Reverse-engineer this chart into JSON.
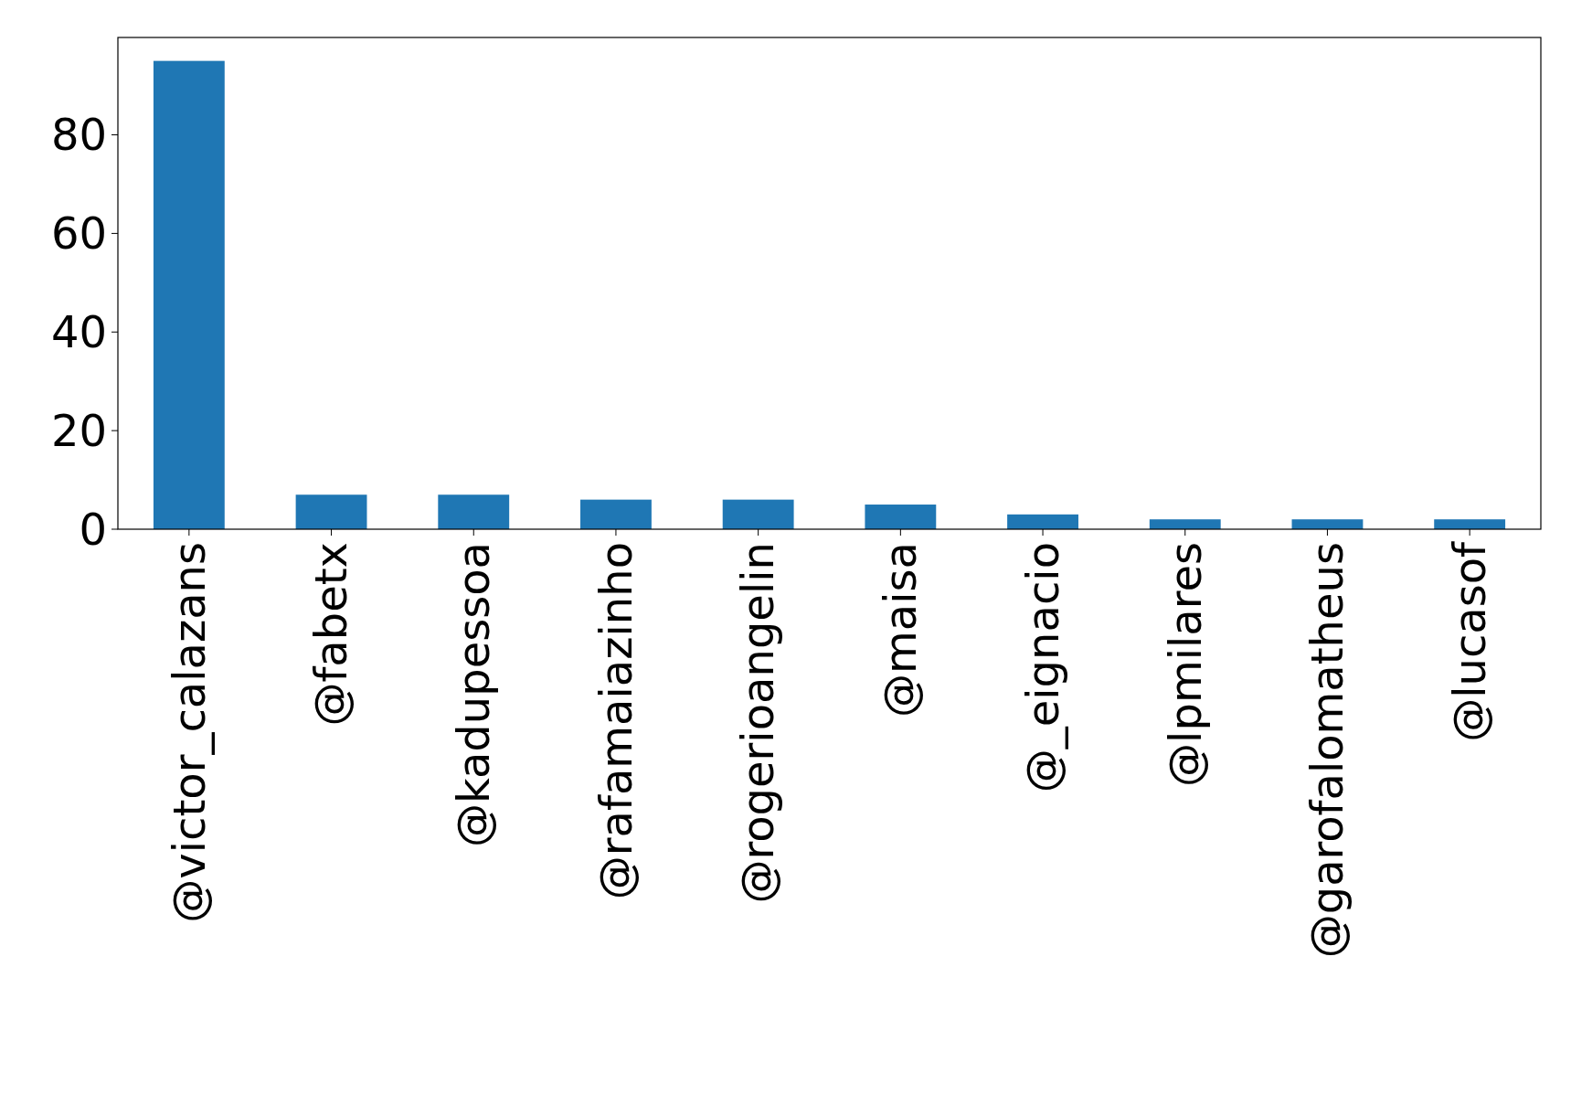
{
  "chart_data": {
    "type": "bar",
    "categories": [
      "@victor_calazans",
      "@fabetx",
      "@kadupessoa",
      "@rafamaiazinho",
      "@rogerioangelin",
      "@maisa",
      "@_eignacio",
      "@lpmilares",
      "@garofalomatheus",
      "@lucasof"
    ],
    "values": [
      95,
      7,
      7,
      6,
      6,
      5,
      3,
      2,
      2,
      2
    ],
    "color": "#1f77b4",
    "ylim": [
      0,
      99.75
    ],
    "yticks": [
      0,
      20,
      40,
      60,
      80
    ],
    "grid": false
  }
}
